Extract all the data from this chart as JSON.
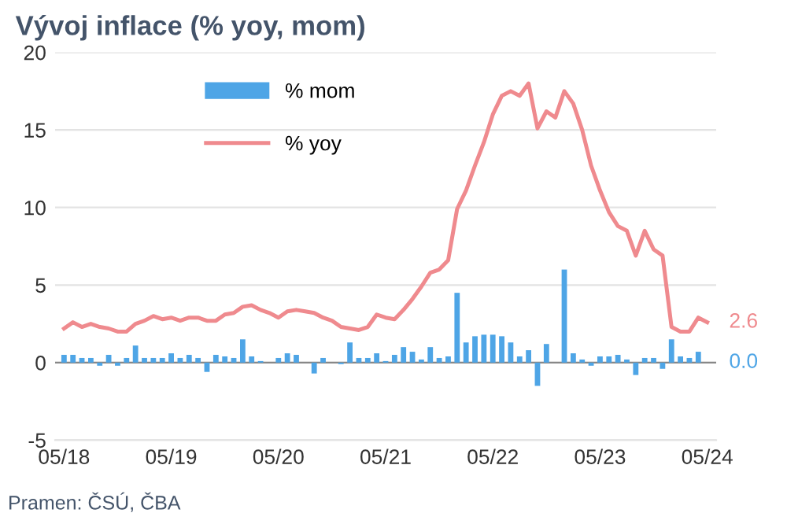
{
  "chart_data": {
    "type": "bar",
    "title": "Vývoj inflace (% yoy, mom)",
    "categories": [
      "05/18",
      null,
      null,
      null,
      null,
      null,
      null,
      null,
      null,
      null,
      null,
      null,
      "05/19",
      null,
      null,
      null,
      null,
      null,
      null,
      null,
      null,
      null,
      null,
      null,
      "05/20",
      null,
      null,
      null,
      null,
      null,
      null,
      null,
      null,
      null,
      null,
      null,
      "05/21",
      null,
      null,
      null,
      null,
      null,
      null,
      null,
      null,
      null,
      null,
      null,
      "05/22",
      null,
      null,
      null,
      null,
      null,
      null,
      null,
      null,
      null,
      null,
      null,
      "05/23",
      null,
      null,
      null,
      null,
      null,
      null,
      null,
      null,
      null,
      null,
      null,
      "05/24"
    ],
    "series": [
      {
        "name": "% mom",
        "color": "#4ea5e6",
        "values": [
          0.5,
          0.5,
          0.3,
          0.3,
          -0.2,
          0.5,
          -0.2,
          0.3,
          1.1,
          0.3,
          0.3,
          0.3,
          0.6,
          0.3,
          0.5,
          0.3,
          -0.6,
          0.5,
          0.4,
          0.3,
          1.5,
          0.4,
          0.1,
          0.0,
          0.3,
          0.6,
          0.5,
          0.0,
          -0.7,
          0.3,
          0.0,
          -0.1,
          1.3,
          0.3,
          0.3,
          0.6,
          0.1,
          0.5,
          1.0,
          0.7,
          0.2,
          1.0,
          0.3,
          0.4,
          4.5,
          1.3,
          1.7,
          1.8,
          1.8,
          1.7,
          1.3,
          0.4,
          0.8,
          -1.5,
          1.2,
          0.0,
          6.0,
          0.6,
          0.2,
          -0.2,
          0.4,
          0.4,
          0.5,
          0.2,
          -0.8,
          0.3,
          0.3,
          -0.4,
          1.5,
          0.4,
          0.3,
          0.7,
          0.0
        ]
      },
      {
        "name": "% yoy",
        "type": "line",
        "color": "#ef8a8e",
        "values": [
          2.2,
          2.6,
          2.3,
          2.5,
          2.3,
          2.2,
          2.0,
          2.0,
          2.5,
          2.7,
          3.0,
          2.8,
          2.9,
          2.7,
          2.9,
          2.9,
          2.7,
          2.7,
          3.1,
          3.2,
          3.6,
          3.7,
          3.4,
          3.2,
          2.9,
          3.3,
          3.4,
          3.3,
          3.2,
          2.9,
          2.7,
          2.3,
          2.2,
          2.1,
          2.3,
          3.1,
          2.9,
          2.8,
          3.4,
          4.1,
          4.9,
          5.8,
          6.0,
          6.6,
          9.9,
          11.1,
          12.7,
          14.2,
          16.0,
          17.2,
          17.5,
          17.2,
          18.0,
          15.1,
          16.2,
          15.8,
          17.5,
          16.7,
          15.0,
          12.7,
          11.1,
          9.7,
          8.8,
          8.5,
          6.9,
          8.5,
          7.3,
          6.9,
          2.3,
          2.0,
          2.0,
          2.9,
          2.6
        ]
      }
    ],
    "ylim": [
      -5,
      20
    ],
    "yticks": [
      -5,
      0,
      5,
      10,
      15,
      20
    ],
    "grid": "y",
    "legend": "top left",
    "annotations": [
      {
        "text": "2.6",
        "x": "05/24",
        "y": 2.6
      },
      {
        "text": "0.0",
        "x": "05/24",
        "y": 0.0
      },
      "Pramen: ČSÚ, ČBA"
    ]
  }
}
